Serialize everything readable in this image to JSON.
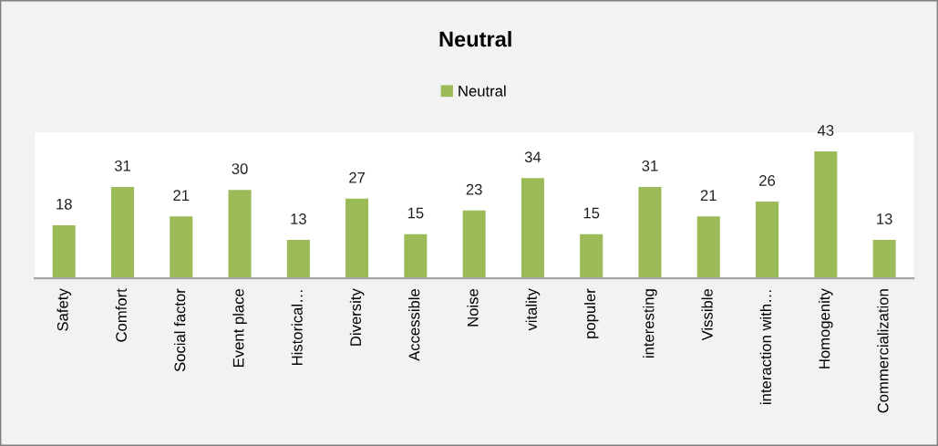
{
  "chart_data": {
    "type": "bar",
    "title": "Neutral",
    "categories": [
      "Safety",
      "Comfort",
      "Social factor",
      "Event place",
      "Historical…",
      "Diversity",
      "Accessible",
      "Noise",
      "vitality",
      "populer",
      "interesting",
      "Vissible",
      "interaction with…",
      "Homogenity",
      "Commercialization"
    ],
    "series": [
      {
        "name": "Neutral",
        "color": "#9bbb59",
        "values": [
          18,
          31,
          21,
          30,
          13,
          27,
          15,
          23,
          34,
          15,
          31,
          21,
          26,
          43,
          13
        ]
      }
    ],
    "data_labels": true,
    "legend": "top",
    "tick_labels": "x"
  }
}
